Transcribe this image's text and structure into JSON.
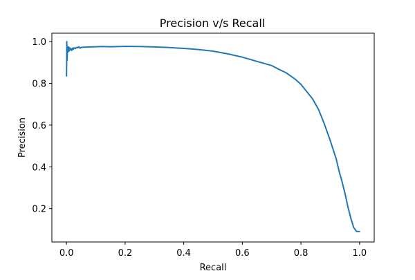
{
  "chart_data": {
    "type": "line",
    "title": "Precision v/s Recall",
    "xlabel": "Recall",
    "ylabel": "Precision",
    "xlim": [
      -0.05,
      1.05
    ],
    "ylim": [
      0.04,
      1.04
    ],
    "xticks": [
      0.0,
      0.2,
      0.4,
      0.6,
      0.8,
      1.0
    ],
    "xtick_labels": [
      "0.0",
      "0.2",
      "0.4",
      "0.6",
      "0.8",
      "1.0"
    ],
    "yticks": [
      0.2,
      0.4,
      0.6,
      0.8,
      1.0
    ],
    "ytick_labels": [
      "0.2",
      "0.4",
      "0.6",
      "0.8",
      "1.0"
    ],
    "grid": false,
    "colors": {
      "series": "#1f77b4",
      "axes": "#000000",
      "background": "#ffffff"
    },
    "series": [
      {
        "x": [
          0.0,
          0.001,
          0.002,
          0.003,
          0.005,
          0.007,
          0.009,
          0.011,
          0.013,
          0.015,
          0.018,
          0.02,
          0.023,
          0.026,
          0.03,
          0.034,
          0.038,
          0.042,
          0.046,
          0.05,
          0.06,
          0.08,
          0.1,
          0.12,
          0.15,
          0.18,
          0.2,
          0.25,
          0.3,
          0.35,
          0.4,
          0.45,
          0.5,
          0.55,
          0.6,
          0.65,
          0.7,
          0.72,
          0.75,
          0.78,
          0.8,
          0.82,
          0.84,
          0.86,
          0.88,
          0.9,
          0.92,
          0.93,
          0.94,
          0.95,
          0.96,
          0.97,
          0.98,
          0.99,
          1.0
        ],
        "y": [
          0.835,
          1.0,
          0.91,
          0.97,
          0.95,
          0.975,
          0.955,
          0.97,
          0.96,
          0.965,
          0.958,
          0.968,
          0.963,
          0.97,
          0.966,
          0.972,
          0.97,
          0.975,
          0.968,
          0.972,
          0.973,
          0.974,
          0.975,
          0.976,
          0.975,
          0.976,
          0.977,
          0.976,
          0.974,
          0.971,
          0.967,
          0.962,
          0.954,
          0.941,
          0.925,
          0.905,
          0.885,
          0.87,
          0.85,
          0.82,
          0.795,
          0.76,
          0.725,
          0.675,
          0.605,
          0.525,
          0.44,
          0.38,
          0.33,
          0.275,
          0.21,
          0.155,
          0.11,
          0.09,
          0.09
        ]
      }
    ]
  }
}
